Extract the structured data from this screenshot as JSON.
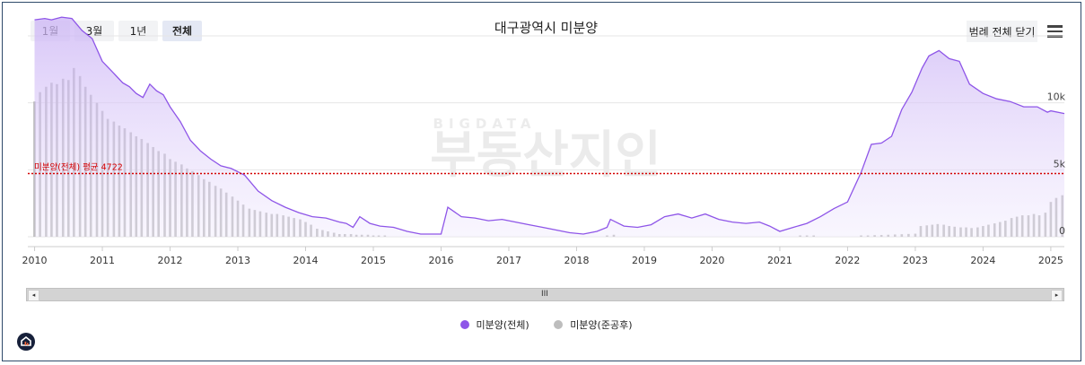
{
  "range_buttons": [
    {
      "label": "1월",
      "active": false
    },
    {
      "label": "3월",
      "active": false
    },
    {
      "label": "1년",
      "active": false
    },
    {
      "label": "전체",
      "active": true
    }
  ],
  "title": "대구광역시 미분양",
  "legend_toggle_label": "범례 전체 닫기",
  "watermark": {
    "top": "BIGDATA",
    "main": "부동산지인"
  },
  "scrollbar": {
    "left_arrow": "◂",
    "right_arrow": "▸",
    "grip": "III"
  },
  "colors": {
    "total_line": "#8e55e8",
    "total_fill": "#e6dbfa",
    "after_bars": "#b3b3b3",
    "avg_line": "#d40000"
  },
  "chart_data": {
    "type": "area",
    "title": "대구광역시 미분양",
    "x_range": [
      2009.9,
      2025.2
    ],
    "ylim": [
      0,
      15000
    ],
    "y_ticks": [
      0,
      5000,
      10000
    ],
    "y_tick_labels": [
      "0",
      "5k",
      "10k"
    ],
    "x_ticks": [
      2010,
      2011,
      2012,
      2013,
      2014,
      2015,
      2016,
      2017,
      2018,
      2019,
      2020,
      2021,
      2022,
      2023,
      2024,
      2025
    ],
    "x_tick_labels": [
      "2010",
      "2011",
      "2012",
      "2013",
      "2014",
      "2015",
      "2016",
      "2017",
      "2018",
      "2019",
      "2020",
      "2021",
      "2022",
      "2023",
      "2024",
      "2025"
    ],
    "grid": true,
    "legend_position": "bottom-center",
    "average": {
      "label": "미분양(전체) 평균 4722",
      "value": 4722
    },
    "series": [
      {
        "name": "미분양(전체)",
        "type": "area",
        "points": [
          [
            2010.0,
            16200
          ],
          [
            2010.15,
            16300
          ],
          [
            2010.25,
            16200
          ],
          [
            2010.4,
            16400
          ],
          [
            2010.55,
            16300
          ],
          [
            2010.7,
            15400
          ],
          [
            2010.85,
            14800
          ],
          [
            2011.0,
            13100
          ],
          [
            2011.15,
            12300
          ],
          [
            2011.3,
            11500
          ],
          [
            2011.4,
            11200
          ],
          [
            2011.5,
            10700
          ],
          [
            2011.6,
            10400
          ],
          [
            2011.7,
            11400
          ],
          [
            2011.8,
            10900
          ],
          [
            2011.9,
            10600
          ],
          [
            2012.0,
            9700
          ],
          [
            2012.15,
            8600
          ],
          [
            2012.3,
            7200
          ],
          [
            2012.45,
            6400
          ],
          [
            2012.6,
            5800
          ],
          [
            2012.75,
            5300
          ],
          [
            2012.9,
            5100
          ],
          [
            2013.1,
            4600
          ],
          [
            2013.3,
            3400
          ],
          [
            2013.5,
            2700
          ],
          [
            2013.7,
            2200
          ],
          [
            2013.9,
            1800
          ],
          [
            2014.1,
            1500
          ],
          [
            2014.3,
            1400
          ],
          [
            2014.5,
            1100
          ],
          [
            2014.6,
            1000
          ],
          [
            2014.7,
            700
          ],
          [
            2014.8,
            1500
          ],
          [
            2014.95,
            1000
          ],
          [
            2015.1,
            800
          ],
          [
            2015.3,
            700
          ],
          [
            2015.5,
            400
          ],
          [
            2015.7,
            200
          ],
          [
            2015.9,
            200
          ],
          [
            2016.0,
            200
          ],
          [
            2016.1,
            2200
          ],
          [
            2016.3,
            1500
          ],
          [
            2016.5,
            1400
          ],
          [
            2016.7,
            1200
          ],
          [
            2016.9,
            1300
          ],
          [
            2017.1,
            1100
          ],
          [
            2017.3,
            900
          ],
          [
            2017.5,
            700
          ],
          [
            2017.7,
            500
          ],
          [
            2017.9,
            300
          ],
          [
            2018.1,
            200
          ],
          [
            2018.3,
            400
          ],
          [
            2018.45,
            700
          ],
          [
            2018.5,
            1300
          ],
          [
            2018.7,
            800
          ],
          [
            2018.9,
            700
          ],
          [
            2019.1,
            900
          ],
          [
            2019.3,
            1500
          ],
          [
            2019.5,
            1700
          ],
          [
            2019.7,
            1400
          ],
          [
            2019.9,
            1700
          ],
          [
            2020.1,
            1300
          ],
          [
            2020.3,
            1100
          ],
          [
            2020.5,
            1000
          ],
          [
            2020.7,
            1100
          ],
          [
            2020.85,
            800
          ],
          [
            2021.0,
            400
          ],
          [
            2021.2,
            700
          ],
          [
            2021.4,
            1000
          ],
          [
            2021.6,
            1500
          ],
          [
            2021.8,
            2100
          ],
          [
            2022.0,
            2600
          ],
          [
            2022.2,
            4800
          ],
          [
            2022.35,
            6900
          ],
          [
            2022.5,
            7000
          ],
          [
            2022.65,
            7500
          ],
          [
            2022.8,
            9500
          ],
          [
            2022.95,
            10800
          ],
          [
            2023.1,
            12600
          ],
          [
            2023.2,
            13500
          ],
          [
            2023.35,
            13900
          ],
          [
            2023.5,
            13300
          ],
          [
            2023.65,
            13100
          ],
          [
            2023.8,
            11400
          ],
          [
            2024.0,
            10700
          ],
          [
            2024.2,
            10300
          ],
          [
            2024.4,
            10100
          ],
          [
            2024.6,
            9700
          ],
          [
            2024.8,
            9700
          ],
          [
            2024.95,
            9300
          ],
          [
            2025.0,
            9400
          ],
          [
            2025.2,
            9200
          ]
        ]
      },
      {
        "name": "미분양(준공후)",
        "type": "bar",
        "points": [
          [
            2010.0,
            10100
          ],
          [
            2010.08,
            10800
          ],
          [
            2010.17,
            11200
          ],
          [
            2010.25,
            11500
          ],
          [
            2010.33,
            11400
          ],
          [
            2010.42,
            11800
          ],
          [
            2010.5,
            11700
          ],
          [
            2010.58,
            12600
          ],
          [
            2010.67,
            12000
          ],
          [
            2010.75,
            11200
          ],
          [
            2010.83,
            10600
          ],
          [
            2010.92,
            10000
          ],
          [
            2011.0,
            9400
          ],
          [
            2011.08,
            8800
          ],
          [
            2011.17,
            8600
          ],
          [
            2011.25,
            8300
          ],
          [
            2011.33,
            8100
          ],
          [
            2011.42,
            7800
          ],
          [
            2011.5,
            7500
          ],
          [
            2011.58,
            7300
          ],
          [
            2011.67,
            7000
          ],
          [
            2011.75,
            6700
          ],
          [
            2011.83,
            6400
          ],
          [
            2011.92,
            6200
          ],
          [
            2012.0,
            5800
          ],
          [
            2012.08,
            5600
          ],
          [
            2012.17,
            5400
          ],
          [
            2012.25,
            5100
          ],
          [
            2012.33,
            4900
          ],
          [
            2012.42,
            4600
          ],
          [
            2012.5,
            4300
          ],
          [
            2012.58,
            4100
          ],
          [
            2012.67,
            3800
          ],
          [
            2012.75,
            3600
          ],
          [
            2012.83,
            3300
          ],
          [
            2012.92,
            3000
          ],
          [
            2013.0,
            2700
          ],
          [
            2013.08,
            2400
          ],
          [
            2013.17,
            2100
          ],
          [
            2013.25,
            2000
          ],
          [
            2013.33,
            1900
          ],
          [
            2013.42,
            1800
          ],
          [
            2013.5,
            1700
          ],
          [
            2013.58,
            1700
          ],
          [
            2013.67,
            1600
          ],
          [
            2013.75,
            1500
          ],
          [
            2013.83,
            1400
          ],
          [
            2013.92,
            1300
          ],
          [
            2014.0,
            1100
          ],
          [
            2014.08,
            900
          ],
          [
            2014.17,
            600
          ],
          [
            2014.25,
            500
          ],
          [
            2014.33,
            400
          ],
          [
            2014.42,
            300
          ],
          [
            2014.5,
            200
          ],
          [
            2014.58,
            200
          ],
          [
            2014.67,
            200
          ],
          [
            2014.75,
            150
          ],
          [
            2014.83,
            150
          ],
          [
            2014.92,
            150
          ],
          [
            2015.0,
            100
          ],
          [
            2015.08,
            100
          ],
          [
            2015.17,
            100
          ],
          [
            2018.45,
            100
          ],
          [
            2018.55,
            150
          ],
          [
            2021.3,
            100
          ],
          [
            2021.4,
            100
          ],
          [
            2021.5,
            100
          ],
          [
            2022.2,
            100
          ],
          [
            2022.3,
            100
          ],
          [
            2022.4,
            120
          ],
          [
            2022.5,
            130
          ],
          [
            2022.6,
            150
          ],
          [
            2022.7,
            170
          ],
          [
            2022.8,
            190
          ],
          [
            2022.9,
            210
          ],
          [
            2023.0,
            230
          ],
          [
            2023.08,
            800
          ],
          [
            2023.17,
            850
          ],
          [
            2023.25,
            900
          ],
          [
            2023.33,
            950
          ],
          [
            2023.42,
            900
          ],
          [
            2023.5,
            800
          ],
          [
            2023.58,
            750
          ],
          [
            2023.67,
            700
          ],
          [
            2023.75,
            700
          ],
          [
            2023.83,
            650
          ],
          [
            2023.92,
            700
          ],
          [
            2024.0,
            800
          ],
          [
            2024.08,
            900
          ],
          [
            2024.17,
            1000
          ],
          [
            2024.25,
            1100
          ],
          [
            2024.33,
            1200
          ],
          [
            2024.42,
            1400
          ],
          [
            2024.5,
            1500
          ],
          [
            2024.58,
            1600
          ],
          [
            2024.67,
            1600
          ],
          [
            2024.75,
            1700
          ],
          [
            2024.83,
            1600
          ],
          [
            2024.92,
            1800
          ],
          [
            2025.0,
            2600
          ],
          [
            2025.08,
            2900
          ],
          [
            2025.17,
            3100
          ]
        ]
      }
    ]
  }
}
